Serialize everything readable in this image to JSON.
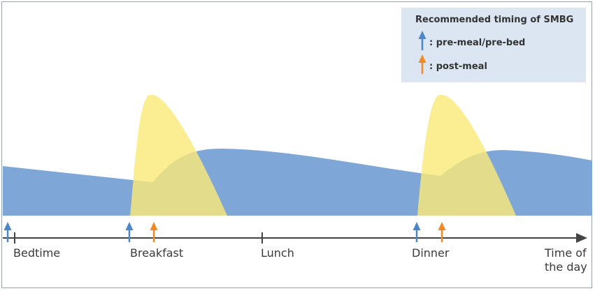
{
  "timeline": {
    "labels": {
      "bedtime": "Bedtime",
      "breakfast": "Breakfast",
      "lunch": "Lunch",
      "dinner": "Dinner",
      "time_line1": "Time of",
      "time_line2": "the day"
    }
  },
  "legend": {
    "title": "Recommended timing of SMBG",
    "pre_label": ": pre-meal/pre-bed",
    "post_label": ": post-meal"
  },
  "colors": {
    "basal_fill": "#7ea7d8",
    "prandial_fill": "#f9e97a",
    "pre_arrow": "#4a86c8",
    "post_arrow": "#f08a24",
    "axis": "#444444",
    "legend_bg": "#dce6f2"
  }
}
